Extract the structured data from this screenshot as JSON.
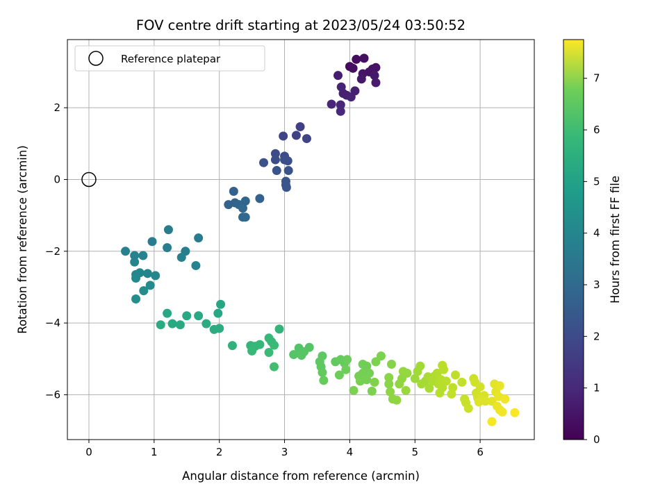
{
  "chart_data": {
    "type": "scatter",
    "title": "FOV centre drift starting at 2023/05/24 03:50:52",
    "xlabel": "Angular distance from reference (arcmin)",
    "ylabel": "Rotation from reference (arcmin)",
    "xlim": [
      -0.33,
      6.83
    ],
    "ylim": [
      -7.25,
      3.9
    ],
    "xticks": [
      0,
      1,
      2,
      3,
      4,
      5,
      6
    ],
    "yticks": [
      -6,
      -4,
      -2,
      0,
      2
    ],
    "grid": true,
    "legend": {
      "position": "top-left",
      "entries": [
        "Reference platepar"
      ]
    },
    "reference_point": {
      "x": 0,
      "y": 0
    },
    "colorbar": {
      "label": "Hours from first FF file",
      "colormap": "viridis",
      "range": [
        0,
        7.75
      ],
      "ticks": [
        0,
        1,
        2,
        3,
        4,
        5,
        6,
        7
      ]
    },
    "points": [
      {
        "x": 4.0,
        "y": 3.15,
        "t": 0.2
      },
      {
        "x": 4.1,
        "y": 3.35,
        "t": 0.25
      },
      {
        "x": 4.22,
        "y": 3.38,
        "t": 0.3
      },
      {
        "x": 4.35,
        "y": 3.08,
        "t": 0.35
      },
      {
        "x": 4.4,
        "y": 3.12,
        "t": 0.4
      },
      {
        "x": 4.3,
        "y": 3.0,
        "t": 0.4
      },
      {
        "x": 4.2,
        "y": 2.95,
        "t": 0.45
      },
      {
        "x": 4.18,
        "y": 2.8,
        "t": 0.5
      },
      {
        "x": 4.38,
        "y": 2.9,
        "t": 0.5
      },
      {
        "x": 4.4,
        "y": 2.7,
        "t": 0.55
      },
      {
        "x": 4.05,
        "y": 3.1,
        "t": 0.3
      },
      {
        "x": 3.95,
        "y": 2.35,
        "t": 0.7
      },
      {
        "x": 3.9,
        "y": 2.4,
        "t": 0.7
      },
      {
        "x": 4.02,
        "y": 2.3,
        "t": 0.75
      },
      {
        "x": 3.87,
        "y": 2.58,
        "t": 0.75
      },
      {
        "x": 3.82,
        "y": 2.9,
        "t": 0.65
      },
      {
        "x": 4.08,
        "y": 2.47,
        "t": 0.7
      },
      {
        "x": 3.72,
        "y": 2.1,
        "t": 0.85
      },
      {
        "x": 3.86,
        "y": 2.08,
        "t": 0.85
      },
      {
        "x": 3.86,
        "y": 1.9,
        "t": 0.9
      },
      {
        "x": 3.24,
        "y": 1.47,
        "t": 1.5
      },
      {
        "x": 3.18,
        "y": 1.23,
        "t": 1.55
      },
      {
        "x": 2.98,
        "y": 1.21,
        "t": 1.6
      },
      {
        "x": 3.34,
        "y": 1.14,
        "t": 1.6
      },
      {
        "x": 2.86,
        "y": 0.72,
        "t": 1.8
      },
      {
        "x": 2.86,
        "y": 0.55,
        "t": 1.85
      },
      {
        "x": 3.0,
        "y": 0.65,
        "t": 1.85
      },
      {
        "x": 3.0,
        "y": 0.55,
        "t": 1.9
      },
      {
        "x": 3.05,
        "y": 0.52,
        "t": 1.9
      },
      {
        "x": 2.68,
        "y": 0.47,
        "t": 1.95
      },
      {
        "x": 2.88,
        "y": 0.25,
        "t": 2.0
      },
      {
        "x": 3.06,
        "y": 0.25,
        "t": 2.0
      },
      {
        "x": 3.02,
        "y": -0.05,
        "t": 2.05
      },
      {
        "x": 3.02,
        "y": -0.15,
        "t": 2.05
      },
      {
        "x": 3.03,
        "y": -0.22,
        "t": 2.05
      },
      {
        "x": 2.22,
        "y": -0.33,
        "t": 2.4
      },
      {
        "x": 2.62,
        "y": -0.53,
        "t": 2.4
      },
      {
        "x": 2.24,
        "y": -0.65,
        "t": 2.45
      },
      {
        "x": 2.14,
        "y": -0.7,
        "t": 2.45
      },
      {
        "x": 2.3,
        "y": -0.7,
        "t": 2.5
      },
      {
        "x": 2.36,
        "y": -0.8,
        "t": 2.55
      },
      {
        "x": 2.4,
        "y": -0.6,
        "t": 2.5
      },
      {
        "x": 2.36,
        "y": -1.05,
        "t": 2.6
      },
      {
        "x": 2.4,
        "y": -1.05,
        "t": 2.6
      },
      {
        "x": 1.22,
        "y": -1.4,
        "t": 3.2
      },
      {
        "x": 1.68,
        "y": -1.63,
        "t": 3.25
      },
      {
        "x": 0.97,
        "y": -1.73,
        "t": 3.3
      },
      {
        "x": 1.2,
        "y": -1.9,
        "t": 3.3
      },
      {
        "x": 1.48,
        "y": -2.0,
        "t": 3.35
      },
      {
        "x": 0.56,
        "y": -2.0,
        "t": 3.4
      },
      {
        "x": 0.7,
        "y": -2.12,
        "t": 3.4
      },
      {
        "x": 0.83,
        "y": -2.12,
        "t": 3.45
      },
      {
        "x": 1.42,
        "y": -2.17,
        "t": 3.45
      },
      {
        "x": 0.7,
        "y": -2.3,
        "t": 3.5
      },
      {
        "x": 1.64,
        "y": -2.4,
        "t": 3.5
      },
      {
        "x": 0.78,
        "y": -2.6,
        "t": 3.55
      },
      {
        "x": 0.9,
        "y": -2.62,
        "t": 3.55
      },
      {
        "x": 1.02,
        "y": -2.68,
        "t": 3.6
      },
      {
        "x": 0.72,
        "y": -2.65,
        "t": 3.6
      },
      {
        "x": 0.72,
        "y": -2.75,
        "t": 3.65
      },
      {
        "x": 0.94,
        "y": -2.95,
        "t": 3.7
      },
      {
        "x": 0.84,
        "y": -3.1,
        "t": 3.75
      },
      {
        "x": 0.72,
        "y": -3.33,
        "t": 3.8
      },
      {
        "x": 2.02,
        "y": -3.48,
        "t": 4.55
      },
      {
        "x": 1.2,
        "y": -3.73,
        "t": 4.6
      },
      {
        "x": 1.98,
        "y": -3.73,
        "t": 4.6
      },
      {
        "x": 1.68,
        "y": -3.8,
        "t": 4.65
      },
      {
        "x": 1.5,
        "y": -3.8,
        "t": 4.65
      },
      {
        "x": 1.28,
        "y": -4.02,
        "t": 4.7
      },
      {
        "x": 1.4,
        "y": -4.05,
        "t": 4.7
      },
      {
        "x": 1.1,
        "y": -4.05,
        "t": 4.75
      },
      {
        "x": 1.8,
        "y": -4.02,
        "t": 4.75
      },
      {
        "x": 2.0,
        "y": -4.15,
        "t": 4.8
      },
      {
        "x": 1.92,
        "y": -4.18,
        "t": 4.8
      },
      {
        "x": 2.92,
        "y": -4.17,
        "t": 5.1
      },
      {
        "x": 2.2,
        "y": -4.63,
        "t": 5.0
      },
      {
        "x": 2.48,
        "y": -4.63,
        "t": 5.1
      },
      {
        "x": 2.55,
        "y": -4.65,
        "t": 5.15
      },
      {
        "x": 2.62,
        "y": -4.6,
        "t": 5.15
      },
      {
        "x": 2.76,
        "y": -4.42,
        "t": 5.2
      },
      {
        "x": 2.8,
        "y": -4.52,
        "t": 5.2
      },
      {
        "x": 2.84,
        "y": -4.62,
        "t": 5.25
      },
      {
        "x": 2.5,
        "y": -4.78,
        "t": 5.2
      },
      {
        "x": 2.76,
        "y": -4.82,
        "t": 5.25
      },
      {
        "x": 2.84,
        "y": -5.22,
        "t": 5.4
      },
      {
        "x": 3.22,
        "y": -4.7,
        "t": 5.6
      },
      {
        "x": 3.38,
        "y": -4.68,
        "t": 5.65
      },
      {
        "x": 3.14,
        "y": -4.88,
        "t": 5.65
      },
      {
        "x": 3.26,
        "y": -4.9,
        "t": 5.7
      },
      {
        "x": 3.3,
        "y": -4.8,
        "t": 5.7
      },
      {
        "x": 3.58,
        "y": -4.92,
        "t": 5.75
      },
      {
        "x": 3.54,
        "y": -5.08,
        "t": 5.8
      },
      {
        "x": 3.56,
        "y": -5.22,
        "t": 5.8
      },
      {
        "x": 3.58,
        "y": -5.38,
        "t": 5.85
      },
      {
        "x": 3.6,
        "y": -5.6,
        "t": 5.9
      },
      {
        "x": 3.78,
        "y": -5.08,
        "t": 5.85
      },
      {
        "x": 3.86,
        "y": -5.02,
        "t": 5.9
      },
      {
        "x": 3.92,
        "y": -5.12,
        "t": 5.9
      },
      {
        "x": 3.96,
        "y": -5.02,
        "t": 5.95
      },
      {
        "x": 3.84,
        "y": -5.45,
        "t": 6.0
      },
      {
        "x": 3.94,
        "y": -5.3,
        "t": 6.0
      },
      {
        "x": 4.2,
        "y": -5.15,
        "t": 6.05
      },
      {
        "x": 4.26,
        "y": -5.2,
        "t": 6.05
      },
      {
        "x": 4.14,
        "y": -5.48,
        "t": 6.1
      },
      {
        "x": 4.2,
        "y": -5.4,
        "t": 6.1
      },
      {
        "x": 4.3,
        "y": -5.4,
        "t": 6.1
      },
      {
        "x": 4.16,
        "y": -5.62,
        "t": 6.15
      },
      {
        "x": 4.26,
        "y": -5.58,
        "t": 6.15
      },
      {
        "x": 4.06,
        "y": -5.88,
        "t": 6.2
      },
      {
        "x": 4.34,
        "y": -5.9,
        "t": 6.2
      },
      {
        "x": 4.38,
        "y": -5.65,
        "t": 6.25
      },
      {
        "x": 4.4,
        "y": -5.08,
        "t": 6.2
      },
      {
        "x": 4.48,
        "y": -4.92,
        "t": 6.2
      },
      {
        "x": 4.64,
        "y": -5.15,
        "t": 6.3
      },
      {
        "x": 4.6,
        "y": -5.52,
        "t": 6.35
      },
      {
        "x": 4.6,
        "y": -5.7,
        "t": 6.35
      },
      {
        "x": 4.62,
        "y": -5.92,
        "t": 6.4
      },
      {
        "x": 4.66,
        "y": -6.12,
        "t": 6.4
      },
      {
        "x": 4.72,
        "y": -6.15,
        "t": 6.45
      },
      {
        "x": 4.76,
        "y": -5.7,
        "t": 6.45
      },
      {
        "x": 4.8,
        "y": -5.55,
        "t": 6.45
      },
      {
        "x": 4.82,
        "y": -5.35,
        "t": 6.5
      },
      {
        "x": 4.88,
        "y": -5.4,
        "t": 6.5
      },
      {
        "x": 4.86,
        "y": -5.88,
        "t": 6.55
      },
      {
        "x": 5.0,
        "y": -5.55,
        "t": 6.6
      },
      {
        "x": 5.04,
        "y": -5.35,
        "t": 6.65
      },
      {
        "x": 5.08,
        "y": -5.2,
        "t": 6.65
      },
      {
        "x": 5.1,
        "y": -5.7,
        "t": 6.7
      },
      {
        "x": 5.16,
        "y": -5.62,
        "t": 6.7
      },
      {
        "x": 5.2,
        "y": -5.5,
        "t": 6.75
      },
      {
        "x": 5.22,
        "y": -5.82,
        "t": 6.75
      },
      {
        "x": 5.28,
        "y": -5.62,
        "t": 6.8
      },
      {
        "x": 5.3,
        "y": -5.48,
        "t": 6.8
      },
      {
        "x": 5.34,
        "y": -5.4,
        "t": 6.85
      },
      {
        "x": 5.36,
        "y": -5.7,
        "t": 6.85
      },
      {
        "x": 5.38,
        "y": -5.95,
        "t": 6.9
      },
      {
        "x": 5.42,
        "y": -5.8,
        "t": 6.9
      },
      {
        "x": 5.4,
        "y": -5.58,
        "t": 6.9
      },
      {
        "x": 5.44,
        "y": -5.3,
        "t": 6.95
      },
      {
        "x": 5.48,
        "y": -5.62,
        "t": 6.95
      },
      {
        "x": 5.42,
        "y": -5.18,
        "t": 6.95
      },
      {
        "x": 5.62,
        "y": -5.45,
        "t": 7.0
      },
      {
        "x": 5.58,
        "y": -5.8,
        "t": 7.0
      },
      {
        "x": 5.56,
        "y": -5.98,
        "t": 7.05
      },
      {
        "x": 5.72,
        "y": -5.65,
        "t": 7.05
      },
      {
        "x": 5.76,
        "y": -6.12,
        "t": 7.1
      },
      {
        "x": 5.78,
        "y": -6.22,
        "t": 7.1
      },
      {
        "x": 5.82,
        "y": -6.38,
        "t": 7.15
      },
      {
        "x": 5.9,
        "y": -5.55,
        "t": 7.15
      },
      {
        "x": 5.92,
        "y": -5.65,
        "t": 7.2
      },
      {
        "x": 5.94,
        "y": -5.95,
        "t": 7.2
      },
      {
        "x": 5.96,
        "y": -6.08,
        "t": 7.25
      },
      {
        "x": 6.0,
        "y": -5.78,
        "t": 7.25
      },
      {
        "x": 6.02,
        "y": -6.12,
        "t": 7.3
      },
      {
        "x": 6.06,
        "y": -6.02,
        "t": 7.3
      },
      {
        "x": 6.08,
        "y": -6.18,
        "t": 7.35
      },
      {
        "x": 5.98,
        "y": -6.2,
        "t": 7.35
      },
      {
        "x": 6.18,
        "y": -6.18,
        "t": 7.4
      },
      {
        "x": 6.22,
        "y": -5.7,
        "t": 7.45
      },
      {
        "x": 6.24,
        "y": -5.92,
        "t": 7.45
      },
      {
        "x": 6.28,
        "y": -6.05,
        "t": 7.5
      },
      {
        "x": 6.3,
        "y": -5.75,
        "t": 7.5
      },
      {
        "x": 6.26,
        "y": -6.32,
        "t": 7.55
      },
      {
        "x": 6.3,
        "y": -6.42,
        "t": 7.55
      },
      {
        "x": 6.34,
        "y": -6.48,
        "t": 7.6
      },
      {
        "x": 6.38,
        "y": -6.12,
        "t": 7.6
      },
      {
        "x": 6.18,
        "y": -6.75,
        "t": 7.65
      },
      {
        "x": 6.53,
        "y": -6.5,
        "t": 7.7
      }
    ]
  }
}
